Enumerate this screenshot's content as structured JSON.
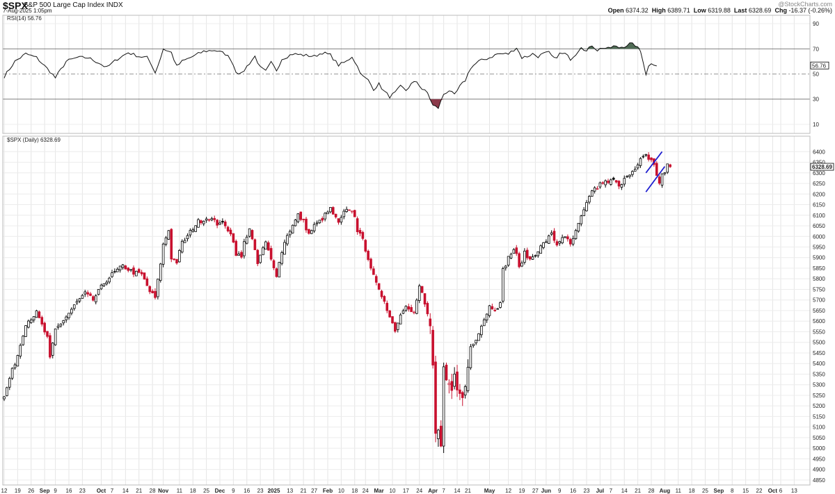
{
  "header": {
    "symbol": "$SPX",
    "name": "S&P 500 Large Cap Index",
    "exchange": "INDX",
    "date": "7-Aug-2025 1:05pm",
    "logo": "@StockCharts.com",
    "open_label": "Open",
    "open": "6374.32",
    "high_label": "High",
    "high": "6389.71",
    "low_label": "Low",
    "low": "6319.88",
    "last_label": "Last",
    "last": "6328.69",
    "chg_label": "Chg",
    "chg": "-16.37 (-0.26%)"
  },
  "rsi_panel": {
    "label": "RSI(14) 56.76",
    "current": "56.76",
    "y_ticks": [
      90,
      70,
      50,
      30,
      10
    ],
    "overbought": 70,
    "oversold": 30,
    "midline": 50,
    "overbought_color": "#4f6b55",
    "oversold_color": "#8b3a4a"
  },
  "price_panel": {
    "label": "$SPX (Daily) 6328.69",
    "last_value": "6328.69",
    "y_ticks": [
      6400,
      6350,
      6300,
      6250,
      6200,
      6150,
      6100,
      6050,
      6000,
      5950,
      5900,
      5850,
      5800,
      5750,
      5700,
      5650,
      5600,
      5550,
      5500,
      5450,
      5400,
      5350,
      5300,
      5250,
      5200,
      5150,
      5100,
      5050,
      5000,
      4950,
      4900,
      4850
    ],
    "up_color": "#000000",
    "down_color": "#c8102e",
    "trendline_color": "#1f1fd0"
  },
  "x_axis": {
    "labels": [
      {
        "t": "12",
        "i": 0
      },
      {
        "t": "19",
        "i": 5
      },
      {
        "t": "26",
        "i": 10
      },
      {
        "t": "Sep",
        "i": 15,
        "bold": true
      },
      {
        "t": "9",
        "i": 19
      },
      {
        "t": "16",
        "i": 24
      },
      {
        "t": "23",
        "i": 29
      },
      {
        "t": "Oct",
        "i": 36,
        "bold": true
      },
      {
        "t": "7",
        "i": 40
      },
      {
        "t": "14",
        "i": 45
      },
      {
        "t": "21",
        "i": 50
      },
      {
        "t": "28",
        "i": 55
      },
      {
        "t": "Nov",
        "i": 59,
        "bold": true
      },
      {
        "t": "11",
        "i": 65
      },
      {
        "t": "18",
        "i": 70
      },
      {
        "t": "25",
        "i": 75
      },
      {
        "t": "Dec",
        "i": 80,
        "bold": true
      },
      {
        "t": "9",
        "i": 85
      },
      {
        "t": "16",
        "i": 90
      },
      {
        "t": "23",
        "i": 95
      },
      {
        "t": "2025",
        "i": 100,
        "bold": true
      },
      {
        "t": "13",
        "i": 106
      },
      {
        "t": "21",
        "i": 111
      },
      {
        "t": "27",
        "i": 115
      },
      {
        "t": "Feb",
        "i": 120,
        "bold": true
      },
      {
        "t": "10",
        "i": 125
      },
      {
        "t": "18",
        "i": 130
      },
      {
        "t": "24",
        "i": 134
      },
      {
        "t": "Mar",
        "i": 139,
        "bold": true
      },
      {
        "t": "10",
        "i": 144
      },
      {
        "t": "17",
        "i": 149
      },
      {
        "t": "24",
        "i": 154
      },
      {
        "t": "Apr",
        "i": 159,
        "bold": true
      },
      {
        "t": "7",
        "i": 163
      },
      {
        "t": "14",
        "i": 168
      },
      {
        "t": "21",
        "i": 172
      },
      {
        "t": "May",
        "i": 180,
        "bold": true
      },
      {
        "t": "12",
        "i": 187
      },
      {
        "t": "19",
        "i": 192
      },
      {
        "t": "27",
        "i": 197
      },
      {
        "t": "Jun",
        "i": 201,
        "bold": true
      },
      {
        "t": "9",
        "i": 206
      },
      {
        "t": "16",
        "i": 211
      },
      {
        "t": "23",
        "i": 216
      },
      {
        "t": "Jul",
        "i": 221,
        "bold": true
      },
      {
        "t": "7",
        "i": 225
      },
      {
        "t": "14",
        "i": 230
      },
      {
        "t": "21",
        "i": 235
      },
      {
        "t": "28",
        "i": 240
      },
      {
        "t": "Aug",
        "i": 245,
        "bold": true
      },
      {
        "t": "11",
        "i": 250
      },
      {
        "t": "18",
        "i": 255
      },
      {
        "t": "25",
        "i": 260
      },
      {
        "t": "Sep",
        "i": 265,
        "bold": true
      },
      {
        "t": "8",
        "i": 270
      },
      {
        "t": "15",
        "i": 275
      },
      {
        "t": "22",
        "i": 280
      },
      {
        "t": "Oct",
        "i": 285,
        "bold": true
      },
      {
        "t": "6",
        "i": 288
      },
      {
        "t": "13",
        "i": 293
      }
    ]
  },
  "chart_data": {
    "type": "candlestick",
    "title": "$SPX (Daily)",
    "ylim": [
      4830,
      6460
    ],
    "approximate": true,
    "price_anchors": [
      [
        0,
        5240
      ],
      [
        2,
        5330
      ],
      [
        5,
        5440
      ],
      [
        8,
        5590
      ],
      [
        12,
        5640
      ],
      [
        16,
        5520
      ],
      [
        17,
        5420
      ],
      [
        19,
        5560
      ],
      [
        23,
        5620
      ],
      [
        27,
        5690
      ],
      [
        30,
        5730
      ],
      [
        33,
        5700
      ],
      [
        37,
        5780
      ],
      [
        40,
        5820
      ],
      [
        44,
        5860
      ],
      [
        48,
        5830
      ],
      [
        51,
        5820
      ],
      [
        54,
        5740
      ],
      [
        56,
        5710
      ],
      [
        57,
        5790
      ],
      [
        59,
        5960
      ],
      [
        61,
        6030
      ],
      [
        62,
        5900
      ],
      [
        64,
        5880
      ],
      [
        66,
        5970
      ],
      [
        68,
        6000
      ],
      [
        70,
        6040
      ],
      [
        72,
        6070
      ],
      [
        76,
        6090
      ],
      [
        79,
        6060
      ],
      [
        80,
        6070
      ],
      [
        84,
        6020
      ],
      [
        86,
        5920
      ],
      [
        88,
        5900
      ],
      [
        89,
        5970
      ],
      [
        91,
        6040
      ],
      [
        94,
        5870
      ],
      [
        95,
        5910
      ],
      [
        97,
        5970
      ],
      [
        99,
        5890
      ],
      [
        100,
        5860
      ],
      [
        101,
        5820
      ],
      [
        103,
        5930
      ],
      [
        105,
        6010
      ],
      [
        107,
        6050
      ],
      [
        109,
        6100
      ],
      [
        111,
        6070
      ],
      [
        113,
        6010
      ],
      [
        115,
        6050
      ],
      [
        117,
        6070
      ],
      [
        119,
        6100
      ],
      [
        121,
        6130
      ],
      [
        124,
        6060
      ],
      [
        126,
        6110
      ],
      [
        128,
        6130
      ],
      [
        130,
        6100
      ],
      [
        131,
        6030
      ],
      [
        133,
        5980
      ],
      [
        135,
        5900
      ],
      [
        137,
        5810
      ],
      [
        139,
        5740
      ],
      [
        141,
        5700
      ],
      [
        143,
        5620
      ],
      [
        145,
        5560
      ],
      [
        147,
        5630
      ],
      [
        149,
        5680
      ],
      [
        152,
        5640
      ],
      [
        154,
        5760
      ],
      [
        155,
        5730
      ],
      [
        157,
        5630
      ],
      [
        158,
        5580
      ],
      [
        159,
        5390
      ],
      [
        160,
        5060
      ],
      [
        161,
        5080
      ],
      [
        162,
        5000
      ],
      [
        163,
        5380
      ],
      [
        164,
        5320
      ],
      [
        166,
        5280
      ],
      [
        167,
        5360
      ],
      [
        168,
        5270
      ],
      [
        170,
        5240
      ],
      [
        171,
        5290
      ],
      [
        173,
        5480
      ],
      [
        175,
        5520
      ],
      [
        178,
        5610
      ],
      [
        180,
        5670
      ],
      [
        182,
        5660
      ],
      [
        184,
        5680
      ],
      [
        185,
        5840
      ],
      [
        187,
        5900
      ],
      [
        189,
        5940
      ],
      [
        190,
        5910
      ],
      [
        191,
        5850
      ],
      [
        193,
        5920
      ],
      [
        195,
        5890
      ],
      [
        197,
        5920
      ],
      [
        199,
        5950
      ],
      [
        201,
        5980
      ],
      [
        203,
        6010
      ],
      [
        205,
        5960
      ],
      [
        207,
        6000
      ],
      [
        209,
        5980
      ],
      [
        210,
        5960
      ],
      [
        212,
        6020
      ],
      [
        214,
        6090
      ],
      [
        216,
        6150
      ],
      [
        218,
        6220
      ],
      [
        220,
        6230
      ],
      [
        222,
        6260
      ],
      [
        224,
        6250
      ],
      [
        226,
        6270
      ],
      [
        228,
        6230
      ],
      [
        230,
        6280
      ],
      [
        232,
        6300
      ],
      [
        234,
        6310
      ],
      [
        236,
        6360
      ],
      [
        238,
        6380
      ],
      [
        240,
        6360
      ],
      [
        241,
        6340
      ],
      [
        242,
        6290
      ],
      [
        243,
        6250
      ],
      [
        244,
        6290
      ],
      [
        245,
        6300
      ],
      [
        246,
        6345
      ],
      [
        247,
        6328.69
      ]
    ],
    "rsi_anchors": [
      [
        0,
        48
      ],
      [
        4,
        60
      ],
      [
        8,
        66
      ],
      [
        12,
        63
      ],
      [
        17,
        52
      ],
      [
        19,
        47
      ],
      [
        23,
        60
      ],
      [
        27,
        63
      ],
      [
        31,
        63
      ],
      [
        35,
        59
      ],
      [
        38,
        55
      ],
      [
        42,
        62
      ],
      [
        46,
        67
      ],
      [
        50,
        64
      ],
      [
        53,
        63
      ],
      [
        55,
        56
      ],
      [
        56,
        51
      ],
      [
        58,
        63
      ],
      [
        59,
        70
      ],
      [
        62,
        67
      ],
      [
        64,
        56
      ],
      [
        66,
        60
      ],
      [
        70,
        64
      ],
      [
        74,
        68
      ],
      [
        78,
        69
      ],
      [
        82,
        66
      ],
      [
        84,
        62
      ],
      [
        86,
        52
      ],
      [
        88,
        50
      ],
      [
        90,
        56
      ],
      [
        93,
        64
      ],
      [
        95,
        55
      ],
      [
        97,
        52
      ],
      [
        99,
        59
      ],
      [
        101,
        53
      ],
      [
        103,
        62
      ],
      [
        107,
        66
      ],
      [
        111,
        65
      ],
      [
        115,
        64
      ],
      [
        118,
        67
      ],
      [
        121,
        65
      ],
      [
        124,
        57
      ],
      [
        127,
        60
      ],
      [
        129,
        64
      ],
      [
        131,
        56
      ],
      [
        133,
        48
      ],
      [
        135,
        45
      ],
      [
        137,
        38
      ],
      [
        139,
        42
      ],
      [
        141,
        36
      ],
      [
        143,
        32
      ],
      [
        145,
        35
      ],
      [
        147,
        40
      ],
      [
        149,
        37
      ],
      [
        151,
        42
      ],
      [
        153,
        44
      ],
      [
        155,
        38
      ],
      [
        157,
        35
      ],
      [
        159,
        25
      ],
      [
        161,
        23
      ],
      [
        163,
        34
      ],
      [
        165,
        37
      ],
      [
        167,
        33
      ],
      [
        169,
        40
      ],
      [
        171,
        45
      ],
      [
        173,
        55
      ],
      [
        176,
        60
      ],
      [
        180,
        63
      ],
      [
        183,
        66
      ],
      [
        185,
        66
      ],
      [
        187,
        66
      ],
      [
        190,
        71
      ],
      [
        192,
        63
      ],
      [
        194,
        64
      ],
      [
        196,
        66
      ],
      [
        198,
        64
      ],
      [
        200,
        66
      ],
      [
        202,
        67
      ],
      [
        204,
        62
      ],
      [
        206,
        66
      ],
      [
        208,
        66
      ],
      [
        210,
        62
      ],
      [
        212,
        66
      ],
      [
        214,
        72
      ],
      [
        216,
        68
      ],
      [
        218,
        73
      ],
      [
        220,
        69
      ],
      [
        222,
        71
      ],
      [
        224,
        70
      ],
      [
        226,
        72
      ],
      [
        228,
        71
      ],
      [
        230,
        72
      ],
      [
        232,
        74
      ],
      [
        234,
        73
      ],
      [
        236,
        68
      ],
      [
        237,
        60
      ],
      [
        238,
        50
      ],
      [
        239,
        56
      ],
      [
        240,
        59
      ],
      [
        242,
        57
      ]
    ],
    "trendlines": [
      {
        "from": [
          238,
          6300
        ],
        "to": [
          244,
          6400
        ]
      },
      {
        "from": [
          238,
          6210
        ],
        "to": [
          245,
          6330
        ]
      }
    ]
  }
}
